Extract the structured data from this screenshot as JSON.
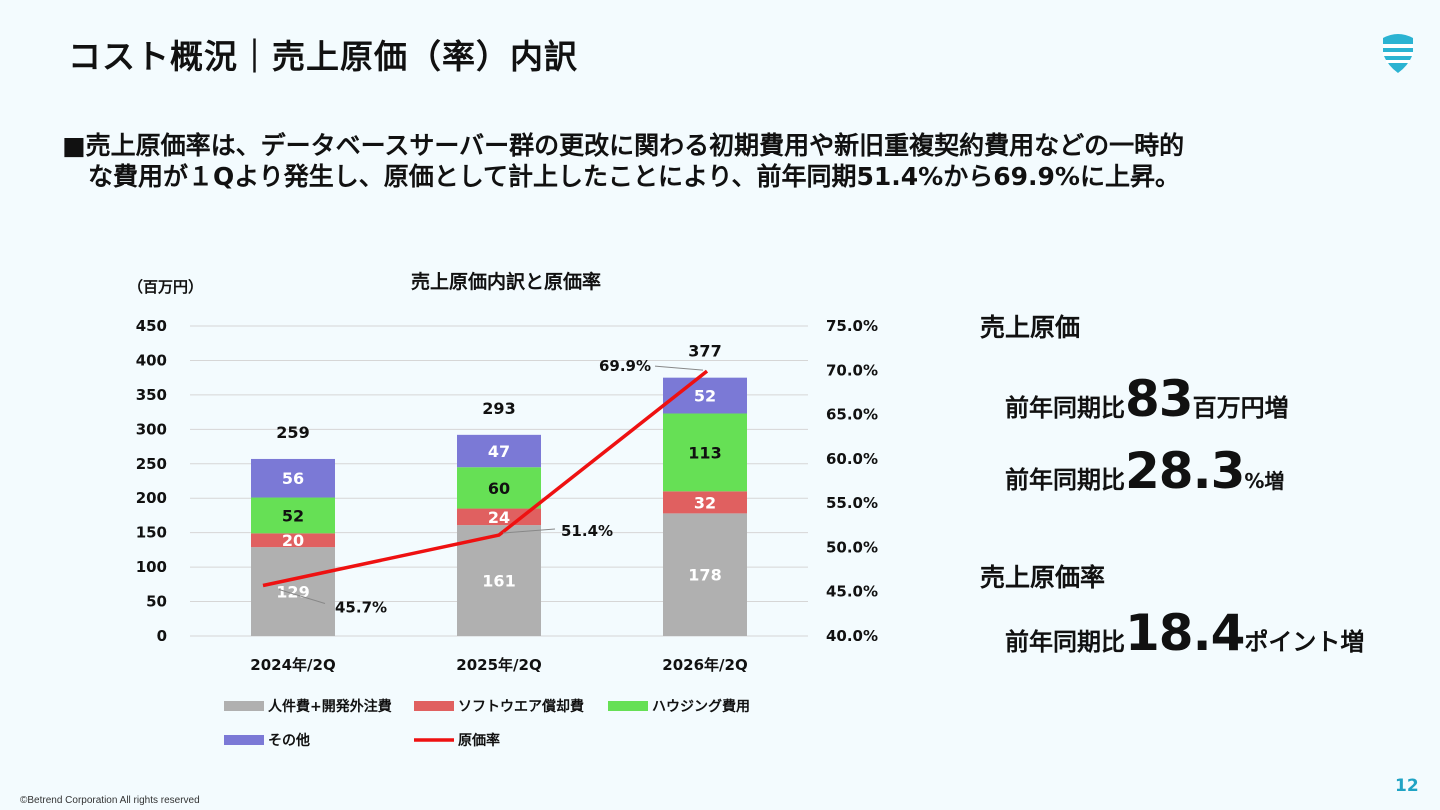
{
  "header": {
    "title": "コスト概況｜売上原価（率）内訳"
  },
  "bullet": {
    "line1": "■売上原価率は、データベースサーバー群の更改に関わる初期費用や新旧重複契約費用などの一時的",
    "line2": "な費用が１Qより発生し、原価として計上したことにより、前年同期51.4%から69.9%に上昇。"
  },
  "chart_data": {
    "type": "bar",
    "title": "売上原価内訳と原価率",
    "unit_label": "（百万円）",
    "categories": [
      "2024年/2Q",
      "2025年/2Q",
      "2026年/2Q"
    ],
    "series": [
      {
        "name": "人件費+開発外注費",
        "values": [
          129,
          161,
          178
        ],
        "color": "#b0b0b0"
      },
      {
        "name": "ソフトウエア償却費",
        "values": [
          20,
          24,
          32
        ],
        "color": "#e06060"
      },
      {
        "name": "ハウジング費用",
        "values": [
          52,
          60,
          113
        ],
        "color": "#66e055"
      },
      {
        "name": "その他",
        "values": [
          56,
          47,
          52
        ],
        "color": "#7b79d6"
      }
    ],
    "totals": [
      259,
      293,
      377
    ],
    "line_series": {
      "name": "原価率",
      "values": [
        45.7,
        51.4,
        69.9
      ],
      "labels": [
        "45.7%",
        "51.4%",
        "69.9%"
      ],
      "color": "#ee1111"
    },
    "y_left": {
      "min": 0,
      "max": 450,
      "ticks": [
        "0",
        "50",
        "100",
        "150",
        "200",
        "250",
        "300",
        "350",
        "400",
        "450"
      ]
    },
    "y_right": {
      "min": 40,
      "max": 75,
      "ticks": [
        "40.0%",
        "45.0%",
        "50.0%",
        "55.0%",
        "60.0%",
        "65.0%",
        "70.0%",
        "75.0%"
      ]
    },
    "grid": true,
    "legend_position": "bottom"
  },
  "kpi": {
    "cost_head": "売上原価",
    "row1": {
      "label": "前年同期比",
      "value": "83",
      "unit": "百万円増"
    },
    "row2": {
      "label": "前年同期比",
      "value": "28.3",
      "unit": "%増"
    },
    "ratio_head": "売上原価率",
    "row3": {
      "label": "前年同期比",
      "value": "18.4",
      "unit": "ポイント増"
    }
  },
  "footer": {
    "copyright": "©Betrend Corporation All rights reserved",
    "page": "12"
  },
  "colors": {
    "accent": "#1fa3c4",
    "background": "#f3fbfe"
  }
}
